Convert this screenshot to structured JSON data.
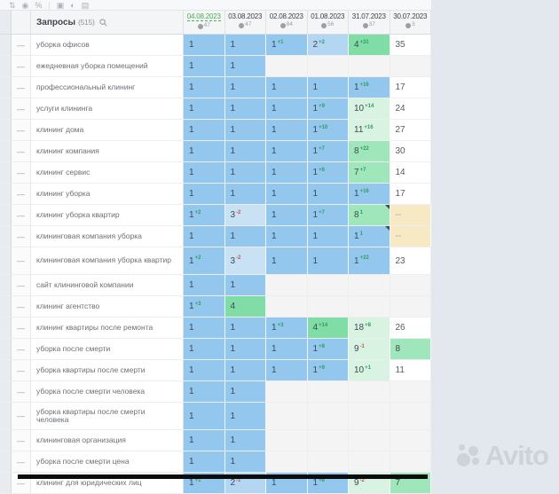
{
  "toolbar": {
    "icons": [
      {
        "name": "sort-icon",
        "glyph": "⇅"
      },
      {
        "name": "target-icon",
        "glyph": "◉"
      },
      {
        "name": "link-icon",
        "glyph": "%"
      },
      {
        "name": "divider",
        "glyph": "|"
      },
      {
        "name": "screenshot-icon",
        "glyph": "▣"
      },
      {
        "name": "contrast-icon",
        "glyph": "◐"
      },
      {
        "name": "folder-icon",
        "glyph": "▤"
      }
    ]
  },
  "header": {
    "queries_label": "Запросы",
    "queries_count": "(515)",
    "columns": [
      {
        "date": "04.08.2023",
        "count": "47",
        "active": true
      },
      {
        "date": "03.08.2023",
        "count": "47",
        "active": false
      },
      {
        "date": "02.08.2023",
        "count": "84",
        "active": false
      },
      {
        "date": "01.08.2023",
        "count": "56",
        "active": false
      },
      {
        "date": "31.07.2023",
        "count": "37",
        "active": false
      },
      {
        "date": "30.07.2023",
        "count": "3",
        "active": false
      }
    ]
  },
  "rows": [
    {
      "query": "уборка офисов",
      "cells": [
        {
          "v": "1",
          "bg": "p1"
        },
        {
          "v": "1",
          "bg": "p1"
        },
        {
          "v": "1",
          "sup": "+1",
          "dir": "up",
          "bg": "p1"
        },
        {
          "v": "2",
          "sup": "+2",
          "dir": "up",
          "bg": "p2"
        },
        {
          "v": "4",
          "sup": "+31",
          "dir": "up",
          "bg": "g1"
        },
        {
          "v": "35",
          "bg": "w"
        }
      ]
    },
    {
      "query": "ежедневная уборка помещений",
      "cells": [
        {
          "v": "1",
          "bg": "p1"
        },
        {
          "v": "1",
          "bg": "p1"
        },
        {
          "bg": "e"
        },
        {
          "bg": "e"
        },
        {
          "bg": "e"
        },
        {
          "bg": "e"
        }
      ]
    },
    {
      "query": "профессиональный клининг",
      "cells": [
        {
          "v": "1",
          "bg": "p1"
        },
        {
          "v": "1",
          "bg": "p1"
        },
        {
          "v": "1",
          "bg": "p1"
        },
        {
          "v": "1",
          "bg": "p1"
        },
        {
          "v": "1",
          "sup": "+16",
          "dir": "up",
          "bg": "p1"
        },
        {
          "v": "17",
          "bg": "w"
        }
      ]
    },
    {
      "query": "услуги клининга",
      "cells": [
        {
          "v": "1",
          "bg": "p1"
        },
        {
          "v": "1",
          "bg": "p1"
        },
        {
          "v": "1",
          "bg": "p1"
        },
        {
          "v": "1",
          "sup": "+9",
          "dir": "up",
          "bg": "p1"
        },
        {
          "v": "10",
          "sup": "+14",
          "dir": "up",
          "bg": "g3"
        },
        {
          "v": "24",
          "bg": "w"
        }
      ]
    },
    {
      "query": "клининг дома",
      "cells": [
        {
          "v": "1",
          "bg": "p1"
        },
        {
          "v": "1",
          "bg": "p1"
        },
        {
          "v": "1",
          "bg": "p1"
        },
        {
          "v": "1",
          "sup": "+10",
          "dir": "up",
          "bg": "p1"
        },
        {
          "v": "11",
          "sup": "+16",
          "dir": "up",
          "bg": "g3"
        },
        {
          "v": "27",
          "bg": "w"
        }
      ]
    },
    {
      "query": "клининг компания",
      "cells": [
        {
          "v": "1",
          "bg": "p1"
        },
        {
          "v": "1",
          "bg": "p1"
        },
        {
          "v": "1",
          "bg": "p1"
        },
        {
          "v": "1",
          "sup": "+7",
          "dir": "up",
          "bg": "p1"
        },
        {
          "v": "8",
          "sup": "+22",
          "dir": "up",
          "bg": "g2"
        },
        {
          "v": "30",
          "bg": "w"
        }
      ]
    },
    {
      "query": "клининг сервис",
      "cells": [
        {
          "v": "1",
          "bg": "p1"
        },
        {
          "v": "1",
          "bg": "p1"
        },
        {
          "v": "1",
          "bg": "p1"
        },
        {
          "v": "1",
          "sup": "+6",
          "dir": "up",
          "bg": "p1"
        },
        {
          "v": "7",
          "sup": "+7",
          "dir": "up",
          "bg": "g2"
        },
        {
          "v": "14",
          "bg": "w"
        }
      ]
    },
    {
      "query": "клининг уборка",
      "cells": [
        {
          "v": "1",
          "bg": "p1"
        },
        {
          "v": "1",
          "bg": "p1"
        },
        {
          "v": "1",
          "bg": "p1"
        },
        {
          "v": "1",
          "bg": "p1"
        },
        {
          "v": "1",
          "sup": "+16",
          "dir": "up",
          "bg": "p1"
        },
        {
          "v": "17",
          "bg": "w"
        }
      ]
    },
    {
      "query": "клининг уборка квартир",
      "cells": [
        {
          "v": "1",
          "sup": "+2",
          "dir": "up",
          "bg": "p1"
        },
        {
          "v": "3",
          "sup": "-2",
          "dir": "dn",
          "bg": "p3"
        },
        {
          "v": "1",
          "bg": "p1"
        },
        {
          "v": "1",
          "sup": "+7",
          "dir": "up",
          "bg": "p1"
        },
        {
          "v": "8",
          "sup": "1",
          "dir": "up",
          "bg": "g2",
          "note": true
        },
        {
          "v": "--",
          "bg": "nd"
        }
      ]
    },
    {
      "query": "клининговая компания уборка",
      "cells": [
        {
          "v": "1",
          "bg": "p1"
        },
        {
          "v": "1",
          "bg": "p1"
        },
        {
          "v": "1",
          "bg": "p1"
        },
        {
          "v": "1",
          "bg": "p1"
        },
        {
          "v": "1",
          "sup": "1",
          "dir": "up",
          "bg": "p1",
          "note": true
        },
        {
          "v": "--",
          "bg": "nd"
        }
      ]
    },
    {
      "query": "клининговая компания уборка квартир",
      "tall": true,
      "cells": [
        {
          "v": "1",
          "sup": "+2",
          "dir": "up",
          "bg": "p1"
        },
        {
          "v": "3",
          "sup": "-2",
          "dir": "dn",
          "bg": "p3"
        },
        {
          "v": "1",
          "bg": "p1"
        },
        {
          "v": "1",
          "bg": "p1"
        },
        {
          "v": "1",
          "sup": "+22",
          "dir": "up",
          "bg": "p1"
        },
        {
          "v": "23",
          "bg": "w"
        }
      ]
    },
    {
      "query": "сайт клининговой компании",
      "cells": [
        {
          "v": "1",
          "bg": "p1"
        },
        {
          "v": "1",
          "bg": "p1"
        },
        {
          "bg": "e"
        },
        {
          "bg": "e"
        },
        {
          "bg": "e"
        },
        {
          "bg": "e"
        }
      ]
    },
    {
      "query": "клининг агентство",
      "cells": [
        {
          "v": "1",
          "sup": "+3",
          "dir": "up",
          "bg": "p1"
        },
        {
          "v": "4",
          "bg": "g1"
        },
        {
          "bg": "e"
        },
        {
          "bg": "e"
        },
        {
          "bg": "e"
        },
        {
          "bg": "e"
        }
      ]
    },
    {
      "query": "клининг квартиры после ремонта",
      "cells": [
        {
          "v": "1",
          "bg": "p1"
        },
        {
          "v": "1",
          "bg": "p1"
        },
        {
          "v": "1",
          "sup": "+3",
          "dir": "up",
          "bg": "p1"
        },
        {
          "v": "4",
          "sup": "+14",
          "dir": "up",
          "bg": "g1"
        },
        {
          "v": "18",
          "sup": "+8",
          "dir": "up",
          "bg": "g3"
        },
        {
          "v": "26",
          "bg": "w"
        }
      ]
    },
    {
      "query": "уборка после смерти",
      "cells": [
        {
          "v": "1",
          "bg": "p1"
        },
        {
          "v": "1",
          "bg": "p1"
        },
        {
          "v": "1",
          "bg": "p1"
        },
        {
          "v": "1",
          "sup": "+8",
          "dir": "up",
          "bg": "p1"
        },
        {
          "v": "9",
          "sup": "-1",
          "dir": "dn",
          "bg": "g3"
        },
        {
          "v": "8",
          "bg": "g2"
        }
      ]
    },
    {
      "query": "уборка квартиры после смерти",
      "cells": [
        {
          "v": "1",
          "bg": "p1"
        },
        {
          "v": "1",
          "bg": "p1"
        },
        {
          "v": "1",
          "bg": "p1"
        },
        {
          "v": "1",
          "sup": "+9",
          "dir": "up",
          "bg": "p1"
        },
        {
          "v": "10",
          "sup": "+1",
          "dir": "up",
          "bg": "g3"
        },
        {
          "v": "11",
          "bg": "w"
        }
      ]
    },
    {
      "query": "уборка после смерти человека",
      "cells": [
        {
          "v": "1",
          "bg": "p1"
        },
        {
          "v": "1",
          "bg": "p1"
        },
        {
          "bg": "e"
        },
        {
          "bg": "e"
        },
        {
          "bg": "e"
        },
        {
          "bg": "e"
        }
      ]
    },
    {
      "query": "уборка квартиры после смерти человека",
      "tall": true,
      "cells": [
        {
          "v": "1",
          "bg": "p1"
        },
        {
          "v": "1",
          "bg": "p1"
        },
        {
          "bg": "e"
        },
        {
          "bg": "e"
        },
        {
          "bg": "e"
        },
        {
          "bg": "e"
        }
      ]
    },
    {
      "query": "клининговая организация",
      "cells": [
        {
          "v": "1",
          "bg": "p1"
        },
        {
          "v": "1",
          "bg": "p1"
        },
        {
          "bg": "e"
        },
        {
          "bg": "e"
        },
        {
          "bg": "e"
        },
        {
          "bg": "e"
        }
      ]
    },
    {
      "query": "уборка после смерти цена",
      "cells": [
        {
          "v": "1",
          "bg": "p1"
        },
        {
          "v": "1",
          "bg": "p1"
        },
        {
          "bg": "e"
        },
        {
          "bg": "e"
        },
        {
          "bg": "e"
        },
        {
          "bg": "e"
        }
      ]
    },
    {
      "query": "клининг для юридических лиц",
      "cells": [
        {
          "v": "1",
          "sup": "+1",
          "dir": "up",
          "bg": "p1"
        },
        {
          "v": "2",
          "sup": "-1",
          "dir": "dn",
          "bg": "p2"
        },
        {
          "v": "1",
          "bg": "p1"
        },
        {
          "v": "1",
          "sup": "+8",
          "dir": "up",
          "bg": "p1"
        },
        {
          "v": "9",
          "sup": "-2",
          "dir": "dn",
          "bg": "g3"
        },
        {
          "v": "7",
          "bg": "g2"
        }
      ]
    }
  ],
  "row_marker": "—",
  "watermark": {
    "text": "Avito"
  },
  "colors": {
    "pos_blue": "#93c7ee",
    "pos_blue_light": "#b3d6f2",
    "pos_blue_lighter": "#c9e1f5",
    "pos_green_strong": "#80dda6",
    "pos_green": "#a0e6bb",
    "pos_green_pale": "#d9f3e3",
    "no_data_tan": "#f6e9c4",
    "change_up": "#2f9e5f",
    "change_down": "#c4574a",
    "active_date": "#4cae4c",
    "page_bg": "#e3e7ee",
    "watermark": "#cdd2db"
  }
}
